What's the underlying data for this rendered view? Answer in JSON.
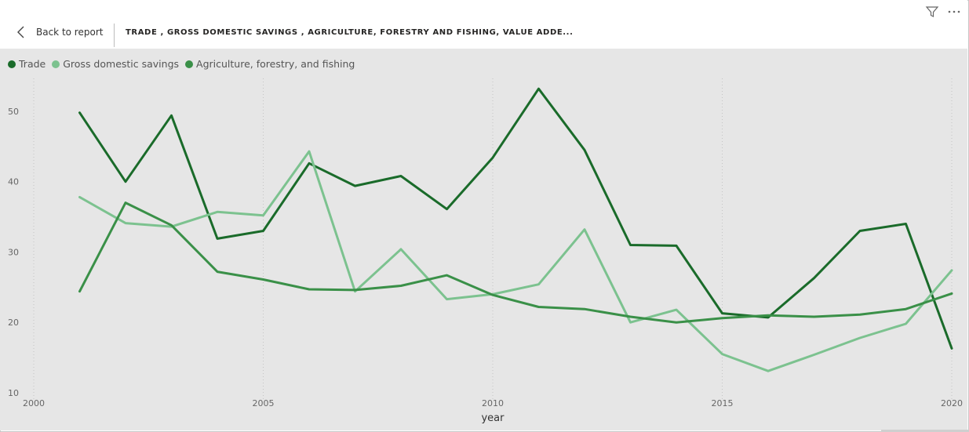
{
  "header": {
    "back_label": "Back to report",
    "title": "TRADE , GROSS DOMESTIC SAVINGS , AGRICULTURE, FORESTRY AND FISHING, VALUE ADDE..."
  },
  "icons": {
    "filter": "filter-icon",
    "more": "more-options-icon",
    "back": "chevron-left-icon"
  },
  "colors": {
    "background": "#e6e6e6",
    "trade": "#1a6b2a",
    "savings": "#7cc28f",
    "agriculture": "#3a9048"
  },
  "chart_data": {
    "type": "line",
    "x": [
      2001,
      2002,
      2003,
      2004,
      2005,
      2006,
      2007,
      2008,
      2009,
      2010,
      2011,
      2012,
      2013,
      2014,
      2015,
      2016,
      2017,
      2018,
      2019,
      2020
    ],
    "series": [
      {
        "name": "Trade",
        "color": "#1a6b2a",
        "values": [
          49.8,
          40.0,
          49.4,
          31.9,
          33.0,
          42.6,
          39.4,
          40.8,
          36.1,
          43.4,
          53.2,
          44.5,
          31.0,
          30.9,
          21.3,
          20.7,
          26.3,
          33.0,
          34.0,
          16.3
        ]
      },
      {
        "name": "Gross domestic savings",
        "color": "#7cc28f",
        "values": [
          37.8,
          34.1,
          33.6,
          35.7,
          35.2,
          44.3,
          24.4,
          30.4,
          23.3,
          24.0,
          25.4,
          33.2,
          20.0,
          21.8,
          15.5,
          13.1,
          15.4,
          17.8,
          19.8,
          27.4
        ]
      },
      {
        "name": "Agriculture, forestry, and fishing",
        "color": "#3a9048",
        "values": [
          24.4,
          37.0,
          33.8,
          27.2,
          26.1,
          24.7,
          24.6,
          25.2,
          26.7,
          23.9,
          22.2,
          21.9,
          20.8,
          20.0,
          20.6,
          21.0,
          20.8,
          21.1,
          21.9,
          24.1
        ]
      }
    ],
    "xlim": [
      2000,
      2020
    ],
    "ylim": [
      10,
      55
    ],
    "xticks": [
      2000,
      2005,
      2010,
      2015,
      2020
    ],
    "xtick_labels": [
      "2000",
      "2005",
      "2010",
      "2015",
      "2020"
    ],
    "yticks": [
      10,
      20,
      30,
      40,
      50
    ],
    "ytick_labels": [
      "10",
      "20",
      "30",
      "40",
      "50"
    ],
    "xlabel": "year",
    "ylabel": "",
    "title": "",
    "grid": "vertical dotted",
    "legend": "top-left"
  }
}
